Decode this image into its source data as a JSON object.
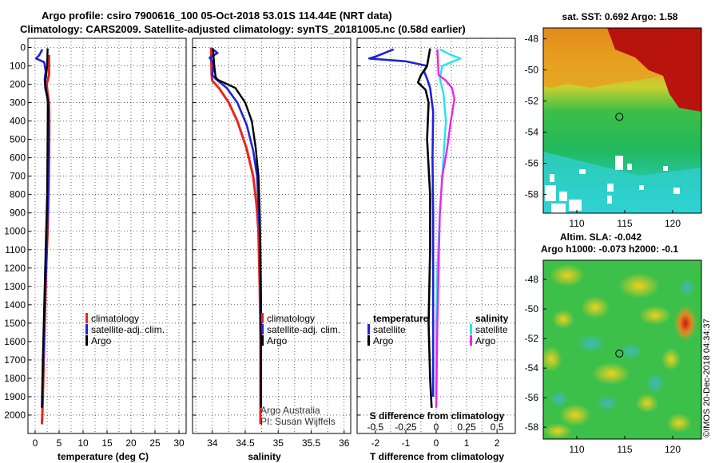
{
  "title": {
    "line1": "Argo profile: csiro 7900616_100 05-Oct-2018 53.01S 114.44E (NRT data)",
    "line2": "Climatology: CARS2009. Satellite-adjusted climatology: synTS_20181005.nc (0.58d earlier)"
  },
  "colors": {
    "climatology": "#e8251e",
    "satellite": "#1f22d8",
    "argo": "#000000",
    "sal_sat": "#22e6e6",
    "sal_argo": "#ee22ee"
  },
  "chart_data": [
    {
      "id": "temperature",
      "type": "line",
      "xlabel": "temperature (deg C)",
      "ylabel": "depth",
      "xlim": [
        -1.5,
        31.5
      ],
      "ylim": [
        2100,
        -50
      ],
      "xticks": [
        0,
        5,
        10,
        15,
        20,
        25,
        30
      ],
      "yticks": [
        0,
        100,
        200,
        300,
        400,
        500,
        600,
        700,
        800,
        900,
        1000,
        1100,
        1200,
        1300,
        1400,
        1500,
        1600,
        1700,
        1800,
        1900,
        2000
      ],
      "legend": [
        "climatology",
        "satellite-adj. clim.",
        "Argo"
      ],
      "series": [
        {
          "name": "climatology",
          "points": [
            [
              2.9,
              40
            ],
            [
              2.9,
              150
            ],
            [
              2.4,
              200
            ],
            [
              2.6,
              250
            ],
            [
              2.9,
              300
            ],
            [
              2.95,
              400
            ],
            [
              2.9,
              600
            ],
            [
              2.8,
              800
            ],
            [
              2.6,
              1000
            ],
            [
              2.3,
              1200
            ],
            [
              2.0,
              1500
            ],
            [
              1.7,
              1800
            ],
            [
              1.5,
              2000
            ],
            [
              1.4,
              2050
            ]
          ]
        },
        {
          "name": "satellite-adj. clim.",
          "points": [
            [
              1.5,
              10
            ],
            [
              0.9,
              40
            ],
            [
              0.2,
              60
            ],
            [
              1.9,
              80
            ],
            [
              2.2,
              130
            ],
            [
              2.0,
              170
            ],
            [
              2.1,
              220
            ],
            [
              2.6,
              280
            ],
            [
              2.8,
              350
            ],
            [
              2.8,
              500
            ],
            [
              2.7,
              800
            ],
            [
              2.4,
              1100
            ],
            [
              2.0,
              1400
            ],
            [
              1.7,
              1700
            ],
            [
              1.5,
              1950
            ]
          ]
        },
        {
          "name": "Argo",
          "points": [
            [
              2.6,
              5
            ],
            [
              2.5,
              100
            ],
            [
              2.3,
              150
            ],
            [
              2.1,
              180
            ],
            [
              2.2,
              220
            ],
            [
              2.5,
              260
            ],
            [
              2.65,
              300
            ],
            [
              2.6,
              500
            ],
            [
              2.5,
              800
            ],
            [
              2.2,
              1100
            ],
            [
              1.9,
              1400
            ],
            [
              1.6,
              1700
            ],
            [
              1.4,
              1960
            ]
          ]
        }
      ]
    },
    {
      "id": "salinity",
      "type": "line",
      "xlabel": "salinity",
      "ylabel": "depth",
      "xlim": [
        33.7,
        36.1
      ],
      "ylim": [
        2100,
        -50
      ],
      "xticks": [
        34,
        34.5,
        35,
        35.5,
        36
      ],
      "legend": [
        "climatology",
        "satellite-adj. clim.",
        "Argo"
      ],
      "annotation": [
        "Argo Australia",
        "PI: Susan Wijffels"
      ],
      "series": [
        {
          "name": "climatology",
          "points": [
            [
              33.98,
              0
            ],
            [
              33.99,
              150
            ],
            [
              34.0,
              180
            ],
            [
              34.1,
              220
            ],
            [
              34.25,
              300
            ],
            [
              34.38,
              400
            ],
            [
              34.52,
              550
            ],
            [
              34.62,
              700
            ],
            [
              34.67,
              850
            ],
            [
              34.7,
              1000
            ],
            [
              34.72,
              1300
            ],
            [
              34.73,
              1600
            ],
            [
              34.73,
              2000
            ],
            [
              34.73,
              2050
            ]
          ]
        },
        {
          "name": "satellite-adj. clim.",
          "points": [
            [
              33.99,
              5
            ],
            [
              34.08,
              30
            ],
            [
              33.96,
              55
            ],
            [
              34.0,
              75
            ],
            [
              34.02,
              100
            ],
            [
              34.0,
              150
            ],
            [
              34.05,
              170
            ],
            [
              34.22,
              220
            ],
            [
              34.38,
              300
            ],
            [
              34.52,
              420
            ],
            [
              34.62,
              560
            ],
            [
              34.68,
              700
            ],
            [
              34.7,
              850
            ],
            [
              34.72,
              1000
            ],
            [
              34.73,
              1300
            ],
            [
              34.74,
              1600
            ],
            [
              34.74,
              1950
            ]
          ]
        },
        {
          "name": "Argo",
          "points": [
            [
              34.01,
              5
            ],
            [
              34.03,
              100
            ],
            [
              34.05,
              160
            ],
            [
              34.08,
              175
            ],
            [
              34.35,
              220
            ],
            [
              34.5,
              300
            ],
            [
              34.6,
              400
            ],
            [
              34.66,
              550
            ],
            [
              34.7,
              700
            ],
            [
              34.72,
              900
            ],
            [
              34.73,
              1100
            ],
            [
              34.74,
              1400
            ],
            [
              34.74,
              1700
            ],
            [
              34.74,
              1960
            ]
          ]
        }
      ]
    },
    {
      "id": "difference",
      "type": "line",
      "xlabel": "T difference from climatology",
      "x2label": "S difference from climatology",
      "xlim": [
        -2.6,
        2.6
      ],
      "ylim": [
        2100,
        -50
      ],
      "xticks": [
        -2,
        -1,
        0,
        1,
        2
      ],
      "x2ticks": [
        -0.5,
        -0.25,
        0,
        0.25,
        0.5
      ],
      "legend_temperature_title": "temperature",
      "legend_salinity_title": "salinity",
      "legend_temperature": [
        "satellite",
        "Argo"
      ],
      "legend_salinity": [
        "satellite",
        "Argo"
      ],
      "series": [
        {
          "name": "T satellite",
          "points": [
            [
              -1.4,
              10
            ],
            [
              -2.0,
              50
            ],
            [
              -2.2,
              60
            ],
            [
              -1.0,
              75
            ],
            [
              -0.3,
              100
            ],
            [
              -0.4,
              130
            ],
            [
              -0.3,
              170
            ],
            [
              -0.2,
              220
            ],
            [
              -0.1,
              350
            ],
            [
              -0.12,
              600
            ],
            [
              -0.1,
              900
            ],
            [
              -0.1,
              1200
            ],
            [
              -0.1,
              1500
            ],
            [
              -0.1,
              1900
            ]
          ]
        },
        {
          "name": "T Argo",
          "points": [
            [
              -0.2,
              5
            ],
            [
              -0.3,
              100
            ],
            [
              -0.5,
              150
            ],
            [
              -0.6,
              190
            ],
            [
              -0.35,
              230
            ],
            [
              -0.25,
              300
            ],
            [
              -0.3,
              500
            ],
            [
              -0.2,
              800
            ],
            [
              -0.2,
              1100
            ],
            [
              -0.25,
              1500
            ],
            [
              -0.2,
              1800
            ],
            [
              -0.15,
              1960
            ]
          ]
        },
        {
          "name": "S satellite",
          "points": [
            [
              0.03,
              10
            ],
            [
              0.12,
              40
            ],
            [
              0.2,
              60
            ],
            [
              0.05,
              100
            ],
            [
              0.03,
              170
            ],
            [
              0.06,
              250
            ],
            [
              0.08,
              400
            ],
            [
              0.06,
              600
            ],
            [
              0.03,
              900
            ],
            [
              0.01,
              1200
            ],
            [
              0.0,
              1500
            ],
            [
              0.0,
              1900
            ]
          ]
        },
        {
          "name": "S Argo",
          "points": [
            [
              0.01,
              10
            ],
            [
              0.02,
              150
            ],
            [
              0.08,
              180
            ],
            [
              0.13,
              220
            ],
            [
              0.15,
              280
            ],
            [
              0.12,
              400
            ],
            [
              0.09,
              550
            ],
            [
              0.05,
              700
            ],
            [
              0.03,
              900
            ],
            [
              0.02,
              1200
            ],
            [
              0.01,
              1500
            ],
            [
              0.0,
              1960
            ]
          ]
        }
      ]
    },
    {
      "id": "sst_map",
      "type": "heatmap",
      "title": "sat. SST: 0.692 Argo: 1.58",
      "xticks": [
        110,
        115,
        120
      ],
      "yticks": [
        -48,
        -50,
        -52,
        -54,
        -56,
        -58
      ],
      "xlim": [
        106.5,
        123
      ],
      "ylim": [
        -59.2,
        -47.3
      ],
      "argo_position": [
        114.44,
        -53.01
      ]
    },
    {
      "id": "sla_map",
      "type": "heatmap",
      "title_line1": "Altim. SLA: -0.042",
      "title_line2": "Argo h1000: -0.073 h2000: -0.1",
      "xticks": [
        110,
        115,
        120
      ],
      "yticks": [
        -48,
        -50,
        -52,
        -54,
        -56,
        -58
      ],
      "xlim": [
        106.5,
        123
      ],
      "ylim": [
        -58.8,
        -46.7
      ],
      "argo_position": [
        114.44,
        -53.01
      ]
    }
  ],
  "footer": "©IMOS 20-Dec-2018 04:34:37"
}
